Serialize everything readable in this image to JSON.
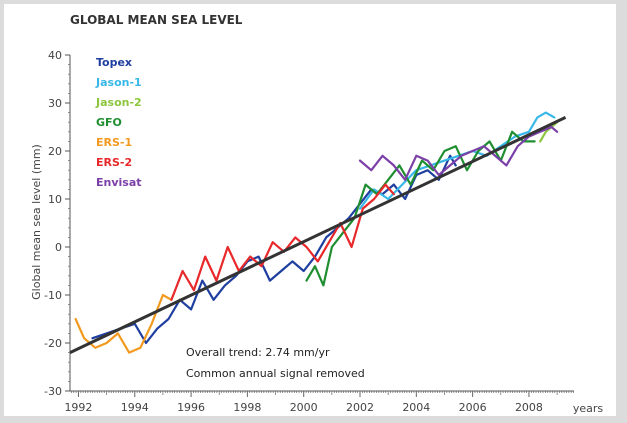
{
  "chart_data": {
    "type": "line",
    "title": "GLOBAL MEAN SEA LEVEL",
    "xlabel": "years",
    "ylabel": "Global mean sea level (mm)",
    "xlim": [
      1991.7,
      2009.6
    ],
    "ylim": [
      -30,
      40
    ],
    "x_ticks": [
      "1992",
      "1994",
      "1996",
      "1998",
      "2000",
      "2002",
      "2004",
      "2006",
      "2008"
    ],
    "y_ticks": [
      "-30",
      "-20",
      "-10",
      "0",
      "10",
      "20",
      "30",
      "40"
    ],
    "legend_position": "top-left",
    "annotations": [
      "Overall trend: 2.74 mm/yr",
      "Common annual signal removed"
    ],
    "trend": {
      "x": [
        1991.7,
        2009.3
      ],
      "y": [
        -22,
        27
      ]
    },
    "series": [
      {
        "name": "Topex",
        "color": "#1f3fa0",
        "x": [
          1992.5,
          1993.0,
          1993.5,
          1994.0,
          1994.4,
          1994.8,
          1995.2,
          1995.6,
          1996.0,
          1996.4,
          1996.8,
          1997.2,
          1997.6,
          1998.0,
          1998.4,
          1998.8,
          1999.2,
          1999.6,
          2000.0,
          2000.4,
          2000.8,
          2001.2,
          2001.6,
          2002.0,
          2002.4,
          2002.8,
          2003.2,
          2003.6,
          2004.0,
          2004.4,
          2004.8,
          2005.2,
          2005.4
        ],
        "y": [
          -19,
          -18,
          -17,
          -16,
          -20,
          -17,
          -15,
          -11,
          -13,
          -7,
          -11,
          -8,
          -6,
          -3,
          -2,
          -7,
          -5,
          -3,
          -5,
          -2,
          2,
          4,
          6,
          9,
          12,
          11,
          13,
          10,
          15,
          16,
          14,
          19,
          17
        ]
      },
      {
        "name": "Jason-1",
        "color": "#38b8e8",
        "x": [
          2002.0,
          2002.5,
          2003.0,
          2003.5,
          2004.0,
          2004.5,
          2005.0,
          2005.5,
          2006.0,
          2006.5,
          2007.0,
          2007.5,
          2008.0,
          2008.3,
          2008.6,
          2008.9
        ],
        "y": [
          8,
          12,
          10,
          13,
          16,
          17,
          18,
          19,
          20,
          19,
          21,
          23,
          24,
          27,
          28,
          27
        ]
      },
      {
        "name": "Jason-2",
        "color": "#8cc63e",
        "x": [
          2008.4,
          2008.6,
          2008.8,
          2009.0
        ],
        "y": [
          22,
          24,
          25,
          26
        ]
      },
      {
        "name": "GFO",
        "color": "#1e8e30",
        "x": [
          2000.1,
          2000.4,
          2000.7,
          2001.0,
          2001.4,
          2001.8,
          2002.2,
          2002.6,
          2003.0,
          2003.4,
          2003.8,
          2004.2,
          2004.6,
          2005.0,
          2005.4,
          2005.8,
          2006.2,
          2006.6,
          2007.0,
          2007.4,
          2007.8,
          2008.2
        ],
        "y": [
          -7,
          -4,
          -8,
          0,
          3,
          6,
          13,
          11,
          14,
          17,
          13,
          18,
          16,
          20,
          21,
          16,
          20,
          22,
          18,
          24,
          22,
          22
        ]
      },
      {
        "name": "ERS-1",
        "color": "#f29a1f",
        "x": [
          1991.9,
          1992.2,
          1992.6,
          1993.0,
          1993.4,
          1993.8,
          1994.2,
          1994.6,
          1995.0,
          1995.3
        ],
        "y": [
          -15,
          -19,
          -21,
          -20,
          -18,
          -22,
          -21,
          -16,
          -10,
          -11
        ]
      },
      {
        "name": "ERS-2",
        "color": "#e8282a",
        "x": [
          1995.3,
          1995.7,
          1996.1,
          1996.5,
          1996.9,
          1997.3,
          1997.7,
          1998.1,
          1998.5,
          1998.9,
          1999.3,
          1999.7,
          2000.1,
          2000.5,
          2000.9,
          2001.3,
          2001.7,
          2002.1,
          2002.5,
          2002.9,
          2003.2
        ],
        "y": [
          -11,
          -5,
          -9,
          -2,
          -7,
          0,
          -5,
          -2,
          -4,
          1,
          -1,
          2,
          0,
          -3,
          1,
          5,
          0,
          8,
          10,
          13,
          11
        ]
      },
      {
        "name": "Envisat",
        "color": "#7b3fa8",
        "x": [
          2002.0,
          2002.4,
          2002.8,
          2003.2,
          2003.6,
          2004.0,
          2004.4,
          2004.8,
          2005.2,
          2005.6,
          2006.0,
          2006.4,
          2006.8,
          2007.2,
          2007.6,
          2008.0,
          2008.4,
          2008.8,
          2009.0
        ],
        "y": [
          18,
          16,
          19,
          17,
          14,
          19,
          18,
          15,
          17,
          19,
          20,
          21,
          19,
          17,
          21,
          23,
          24,
          25,
          24
        ]
      }
    ]
  }
}
